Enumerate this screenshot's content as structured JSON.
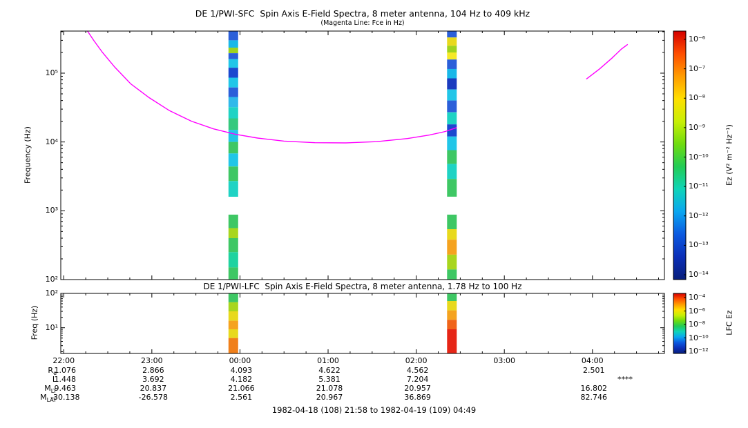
{
  "footer": {
    "date_range": "1982-04-18 (108) 21:58 to 1982-04-19 (109) 04:49"
  },
  "time_axis": {
    "tick_hours": [
      22,
      23,
      24,
      25,
      26,
      27,
      28
    ],
    "tick_labels": [
      "22:00",
      "23:00",
      "00:00",
      "01:00",
      "02:00",
      "03:00",
      "04:00"
    ]
  },
  "ephemeris": {
    "rows": [
      {
        "label": "R",
        "sub": "e",
        "values": [
          "1.076",
          "2.866",
          "4.093",
          "4.622",
          "4.562",
          "",
          "2.501"
        ],
        "extra": ""
      },
      {
        "label": "L",
        "sub": "",
        "values": [
          "1.448",
          "3.692",
          "4.182",
          "5.381",
          "7.204",
          "",
          ""
        ],
        "extra": "****"
      },
      {
        "label": "M",
        "sub": "LT",
        "values": [
          "9.463",
          "20.837",
          "21.066",
          "21.078",
          "20.957",
          "",
          "16.802"
        ],
        "extra": ""
      },
      {
        "label": "M",
        "sub": "LAT",
        "values": [
          "-30.138",
          "-26.578",
          "2.561",
          "20.967",
          "36.869",
          "",
          "82.746"
        ],
        "extra": ""
      }
    ]
  },
  "chart_data": [
    {
      "type": "heatmap",
      "title": "DE 1/PWI-SFC  Spin Axis E-Field Spectra, 8 meter antenna, 104 Hz to 409 kHz",
      "subtitle": "(Magenta Line: Fce in Hz)",
      "ylabel": "Frequency (Hz)",
      "y_scale": "log",
      "ylim_hz": [
        100,
        409000
      ],
      "x_start": "1982-04-18 21:58",
      "x_end": "1982-04-19 04:49",
      "x_hours": [
        21.9667,
        28.8167
      ],
      "y_ticks": [
        {
          "f": 100000,
          "label": "10⁵"
        },
        {
          "f": 10000,
          "label": "10⁴"
        },
        {
          "f": 1000,
          "label": "10³"
        },
        {
          "f": 100,
          "label": "10²"
        }
      ],
      "colorbar": {
        "label": "Ez (V² m⁻² Hz⁻¹)",
        "tick_labels": [
          "10⁻⁶",
          "10⁻⁷",
          "10⁻⁸",
          "10⁻⁹",
          "10⁻¹⁰",
          "10⁻¹¹",
          "10⁻¹²",
          "10⁻¹³",
          "10⁻¹⁴"
        ],
        "colors_top_to_bottom": [
          "#d40000",
          "#ff4e00",
          "#ff9c00",
          "#ffdf00",
          "#c8ef05",
          "#6fdc0f",
          "#22cc55",
          "#0fd4b8",
          "#0aa6f0",
          "#0b59e0",
          "#0b2fb8",
          "#081e7a"
        ]
      },
      "fce_line": {
        "color": "#ff00ff",
        "segments": [
          [
            [
              22.27,
              409000
            ],
            [
              22.34,
              300000
            ],
            [
              22.44,
              200000
            ],
            [
              22.58,
              122000
            ],
            [
              22.76,
              70000
            ],
            [
              22.97,
              44000
            ],
            [
              23.2,
              28500
            ],
            [
              23.45,
              20000
            ],
            [
              23.7,
              15500
            ],
            [
              23.95,
              12900
            ],
            [
              24.2,
              11400
            ],
            [
              24.5,
              10300
            ],
            [
              24.85,
              9750
            ],
            [
              25.2,
              9700
            ],
            [
              25.55,
              10100
            ],
            [
              25.9,
              11200
            ],
            [
              26.15,
              12600
            ],
            [
              26.33,
              14200
            ],
            [
              26.46,
              16200
            ]
          ],
          [
            [
              27.93,
              82000
            ],
            [
              28.08,
              115000
            ],
            [
              28.22,
              165000
            ],
            [
              28.33,
              225000
            ],
            [
              28.4,
              262000
            ]
          ]
        ]
      },
      "stripes": [
        {
          "t": [
            23.87,
            23.98
          ],
          "segments": [
            [
              409000,
              300000,
              "#2b5fd9"
            ],
            [
              300000,
              235000,
              "#19b8e8"
            ],
            [
              235000,
              195000,
              "#9fd31f"
            ],
            [
              195000,
              160000,
              "#2b5fd9"
            ],
            [
              160000,
              120000,
              "#21c6e8"
            ],
            [
              120000,
              86000,
              "#1b49cf"
            ],
            [
              86000,
              62000,
              "#21c6e8"
            ],
            [
              62000,
              45000,
              "#2b5fd9"
            ],
            [
              45000,
              32000,
              "#2fb9ea"
            ],
            [
              32000,
              22000,
              "#1fd3c4"
            ],
            [
              22000,
              15000,
              "#35c97e"
            ],
            [
              15000,
              10000,
              "#21c6e8"
            ],
            [
              10000,
              6800,
              "#3ec764"
            ],
            [
              6800,
              4400,
              "#21c6e8"
            ],
            [
              4400,
              2700,
              "#3ec764"
            ],
            [
              2700,
              1600,
              "#1fd3c4"
            ],
            [
              880,
              560,
              "#3ec764"
            ],
            [
              560,
              400,
              "#a8d61e"
            ],
            [
              400,
              250,
              "#3ec764"
            ],
            [
              250,
              150,
              "#1fd3a0"
            ],
            [
              150,
              100,
              "#3ec764"
            ]
          ]
        },
        {
          "t": [
            26.35,
            26.46
          ],
          "segments": [
            [
              409000,
              330000,
              "#2b5fd9"
            ],
            [
              330000,
              250000,
              "#e8d91d"
            ],
            [
              250000,
              200000,
              "#9fd31f"
            ],
            [
              200000,
              158000,
              "#f5e929"
            ],
            [
              158000,
              115000,
              "#2b5fd9"
            ],
            [
              115000,
              84000,
              "#19b8e8"
            ],
            [
              84000,
              58000,
              "#1b3bbf"
            ],
            [
              58000,
              40000,
              "#21c6e8"
            ],
            [
              40000,
              27000,
              "#2b5fd9"
            ],
            [
              27000,
              18000,
              "#1fd3c4"
            ],
            [
              18000,
              12000,
              "#1b49cf"
            ],
            [
              12000,
              7600,
              "#21c6e8"
            ],
            [
              7600,
              4800,
              "#3ec764"
            ],
            [
              4800,
              2900,
              "#1fd3c4"
            ],
            [
              2900,
              1600,
              "#3ec764"
            ],
            [
              880,
              540,
              "#3ec764"
            ],
            [
              540,
              380,
              "#e8d91d"
            ],
            [
              380,
              230,
              "#f5a31f"
            ],
            [
              230,
              140,
              "#a8d61e"
            ],
            [
              140,
              100,
              "#3ec764"
            ]
          ]
        }
      ]
    },
    {
      "type": "heatmap",
      "title": "DE 1/PWI-LFC  Spin Axis E-Field Spectra, 8 meter antenna, 1.78 Hz to 100 Hz",
      "ylabel": "Freq (Hz)",
      "y_scale": "log",
      "ylim_hz": [
        1.78,
        100
      ],
      "y_ticks": [
        {
          "f": 100,
          "label": "10²"
        },
        {
          "f": 10,
          "label": "10¹"
        }
      ],
      "colorbar": {
        "label": "LFC Ez",
        "tick_labels": [
          "10⁻⁴",
          "10⁻⁶",
          "10⁻⁸",
          "10⁻¹⁰",
          "10⁻¹²"
        ],
        "colors_top_to_bottom": [
          "#d40000",
          "#ff4e00",
          "#ff9c00",
          "#ffdf00",
          "#c8ef05",
          "#6fdc0f",
          "#22cc55",
          "#0fd4b8",
          "#0aa6f0",
          "#0b59e0",
          "#0b2fb8",
          "#081e7a"
        ]
      },
      "stripes": [
        {
          "t": [
            23.87,
            23.98
          ],
          "segments": [
            [
              100,
              55,
              "#3ec764"
            ],
            [
              55,
              30,
              "#a8d61e"
            ],
            [
              30,
              16,
              "#e8d91d"
            ],
            [
              16,
              9,
              "#f5a31f"
            ],
            [
              9,
              5,
              "#e8d91d"
            ],
            [
              5,
              1.78,
              "#f07f1a"
            ]
          ]
        },
        {
          "t": [
            26.35,
            26.46
          ],
          "segments": [
            [
              100,
              60,
              "#3ec764"
            ],
            [
              60,
              32,
              "#e8d91d"
            ],
            [
              32,
              17,
              "#f5a31f"
            ],
            [
              17,
              9,
              "#f0641a"
            ],
            [
              9,
              1.78,
              "#e62617"
            ]
          ]
        }
      ]
    }
  ]
}
